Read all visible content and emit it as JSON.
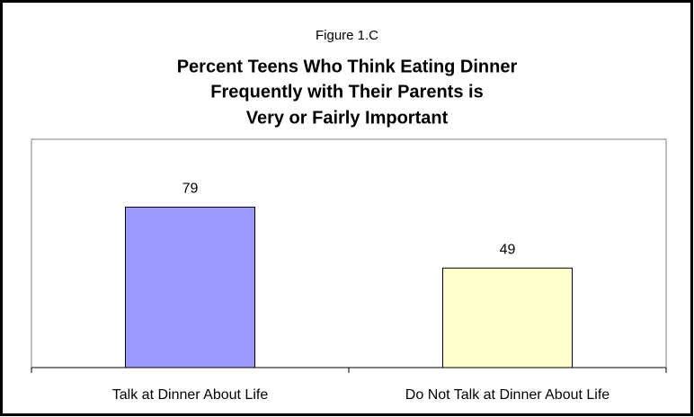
{
  "chart_data": {
    "type": "bar",
    "figure_label": "Figure 1.C",
    "title": [
      "Percent Teens Who Think Eating Dinner",
      "Frequently with Their Parents is",
      "Very or Fairly Important"
    ],
    "categories": [
      "Talk at Dinner About Life",
      "Do Not Talk at Dinner About Life"
    ],
    "values": [
      79,
      49
    ],
    "colors": [
      "#9999ff",
      "#ffffcc"
    ],
    "ylim": [
      0,
      100
    ]
  }
}
